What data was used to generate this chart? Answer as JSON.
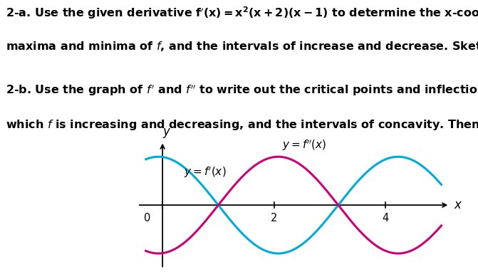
{
  "fp_color": "#00AADD",
  "fpp_color": "#CC0077",
  "bg_color": "#ffffff",
  "text_fontsize": 11.5,
  "label_fontsize": 11,
  "x_ticks": [
    0,
    2,
    4
  ],
  "x_tick_labels": [
    "0",
    "2",
    "4"
  ],
  "fp_amp": 0.85,
  "fpp_amp": 0.85,
  "fp_period": 2.15,
  "fpp_period": 2.15,
  "fp_phase": 3.15,
  "fpp_phase": 1.0
}
